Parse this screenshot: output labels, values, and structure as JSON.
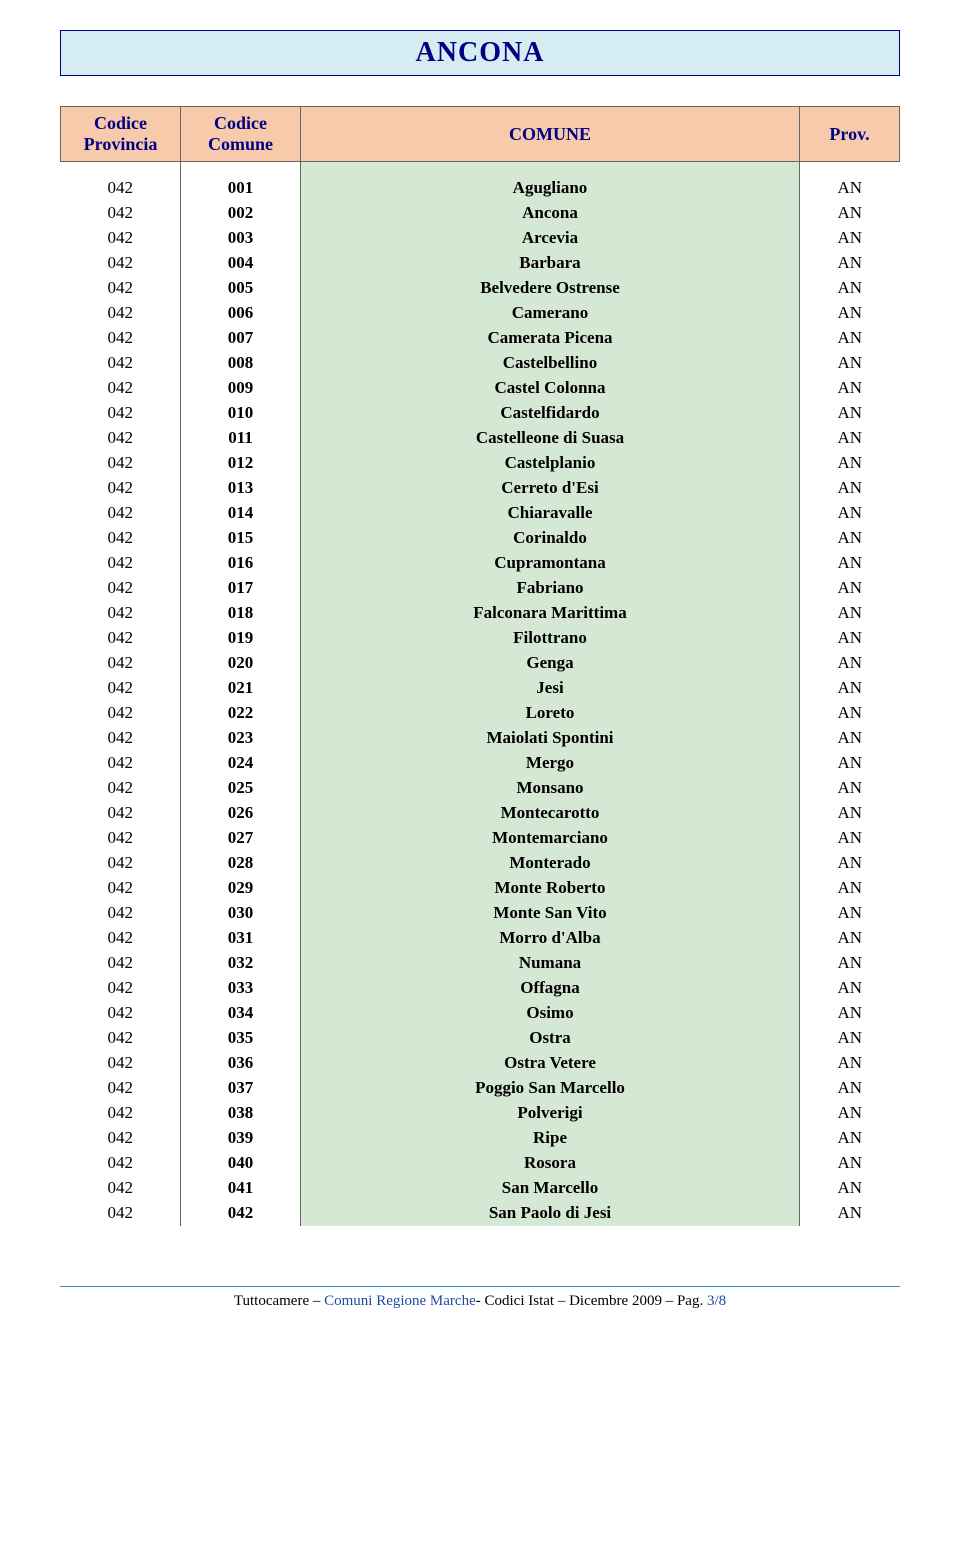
{
  "title": "ANCONA",
  "headers": {
    "provincia": "Codice Provincia",
    "comune": "Codice Comune",
    "comune_name": "COMUNE",
    "prov": "Prov."
  },
  "colors": {
    "title_bg": "#d5ecf3",
    "title_text": "#000080",
    "header_bg": "#f7caac",
    "header_text": "#000080",
    "comune_bg": "#d5e8d4",
    "divider": "#1f8fd6",
    "footer_blue": "#1f4aa6"
  },
  "rows": [
    {
      "cp": "042",
      "cc": "001",
      "name": "Agugliano",
      "pv": "AN"
    },
    {
      "cp": "042",
      "cc": "002",
      "name": "Ancona",
      "pv": "AN"
    },
    {
      "cp": "042",
      "cc": "003",
      "name": "Arcevia",
      "pv": "AN"
    },
    {
      "cp": "042",
      "cc": "004",
      "name": "Barbara",
      "pv": "AN"
    },
    {
      "cp": "042",
      "cc": "005",
      "name": "Belvedere Ostrense",
      "pv": "AN"
    },
    {
      "cp": "042",
      "cc": "006",
      "name": "Camerano",
      "pv": "AN"
    },
    {
      "cp": "042",
      "cc": "007",
      "name": "Camerata Picena",
      "pv": "AN"
    },
    {
      "cp": "042",
      "cc": "008",
      "name": "Castelbellino",
      "pv": "AN"
    },
    {
      "cp": "042",
      "cc": "009",
      "name": "Castel Colonna",
      "pv": "AN"
    },
    {
      "cp": "042",
      "cc": "010",
      "name": "Castelfidardo",
      "pv": "AN"
    },
    {
      "cp": "042",
      "cc": "011",
      "name": "Castelleone di Suasa",
      "pv": "AN"
    },
    {
      "cp": "042",
      "cc": "012",
      "name": "Castelplanio",
      "pv": "AN"
    },
    {
      "cp": "042",
      "cc": "013",
      "name": "Cerreto d'Esi",
      "pv": "AN"
    },
    {
      "cp": "042",
      "cc": "014",
      "name": "Chiaravalle",
      "pv": "AN"
    },
    {
      "cp": "042",
      "cc": "015",
      "name": "Corinaldo",
      "pv": "AN"
    },
    {
      "cp": "042",
      "cc": "016",
      "name": "Cupramontana",
      "pv": "AN"
    },
    {
      "cp": "042",
      "cc": "017",
      "name": "Fabriano",
      "pv": "AN"
    },
    {
      "cp": "042",
      "cc": "018",
      "name": "Falconara Marittima",
      "pv": "AN"
    },
    {
      "cp": "042",
      "cc": "019",
      "name": "Filottrano",
      "pv": "AN"
    },
    {
      "cp": "042",
      "cc": "020",
      "name": "Genga",
      "pv": "AN"
    },
    {
      "cp": "042",
      "cc": "021",
      "name": "Jesi",
      "pv": "AN"
    },
    {
      "cp": "042",
      "cc": "022",
      "name": "Loreto",
      "pv": "AN"
    },
    {
      "cp": "042",
      "cc": "023",
      "name": "Maiolati Spontini",
      "pv": "AN"
    },
    {
      "cp": "042",
      "cc": "024",
      "name": "Mergo",
      "pv": "AN"
    },
    {
      "cp": "042",
      "cc": "025",
      "name": "Monsano",
      "pv": "AN"
    },
    {
      "cp": "042",
      "cc": "026",
      "name": "Montecarotto",
      "pv": "AN"
    },
    {
      "cp": "042",
      "cc": "027",
      "name": "Montemarciano",
      "pv": "AN"
    },
    {
      "cp": "042",
      "cc": "028",
      "name": "Monterado",
      "pv": "AN"
    },
    {
      "cp": "042",
      "cc": "029",
      "name": "Monte Roberto",
      "pv": "AN"
    },
    {
      "cp": "042",
      "cc": "030",
      "name": "Monte San Vito",
      "pv": "AN"
    },
    {
      "cp": "042",
      "cc": "031",
      "name": "Morro d'Alba",
      "pv": "AN"
    },
    {
      "cp": "042",
      "cc": "032",
      "name": "Numana",
      "pv": "AN"
    },
    {
      "cp": "042",
      "cc": "033",
      "name": "Offagna",
      "pv": "AN"
    },
    {
      "cp": "042",
      "cc": "034",
      "name": "Osimo",
      "pv": "AN"
    },
    {
      "cp": "042",
      "cc": "035",
      "name": "Ostra",
      "pv": "AN"
    },
    {
      "cp": "042",
      "cc": "036",
      "name": "Ostra Vetere",
      "pv": "AN"
    },
    {
      "cp": "042",
      "cc": "037",
      "name": "Poggio San Marcello",
      "pv": "AN"
    },
    {
      "cp": "042",
      "cc": "038",
      "name": "Polverigi",
      "pv": "AN"
    },
    {
      "cp": "042",
      "cc": "039",
      "name": "Ripe",
      "pv": "AN"
    },
    {
      "cp": "042",
      "cc": "040",
      "name": "Rosora",
      "pv": "AN"
    },
    {
      "cp": "042",
      "cc": "041",
      "name": "San Marcello",
      "pv": "AN"
    },
    {
      "cp": "042",
      "cc": "042",
      "name": "San Paolo di Jesi",
      "pv": "AN"
    }
  ],
  "footer": {
    "prefix": "Tuttocamere – ",
    "mid": "Comuni Regione Marche",
    "suffix": "- Codici Istat – Dicembre 2009 – Pag. ",
    "page": "3/8"
  }
}
